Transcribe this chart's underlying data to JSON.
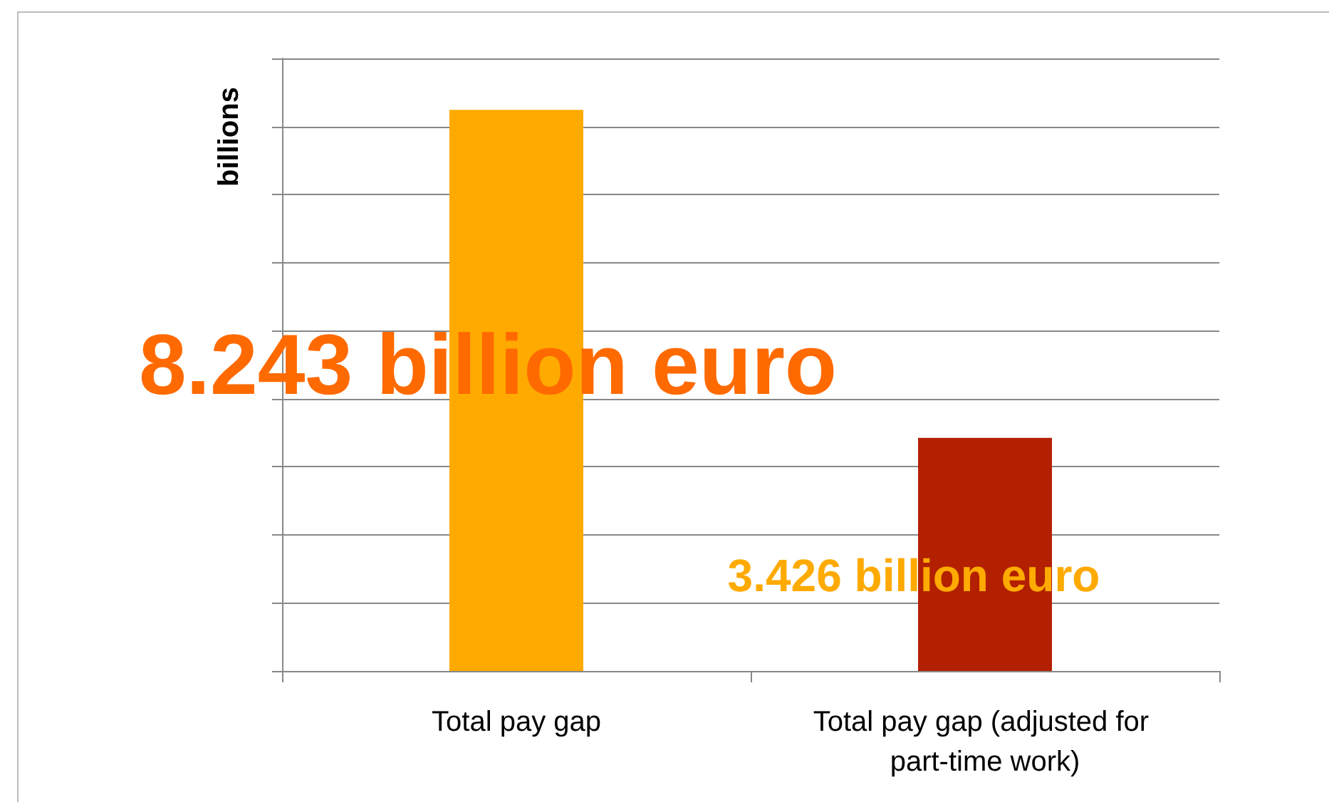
{
  "chart_data": {
    "type": "bar",
    "ylabel": "billions",
    "categories": [
      "Total pay gap",
      "Total pay gap (adjusted for part-time work)"
    ],
    "values": [
      8.243,
      3.426
    ],
    "colors": [
      "#ffaa00",
      "#b22000"
    ],
    "value_labels": [
      "8.243 billion euro",
      "3.426 billion euro"
    ],
    "ylim": [
      0,
      9
    ],
    "yticks": [
      {
        "value": 0,
        "label": null
      },
      {
        "value": 1,
        "label": null
      },
      {
        "value": 2,
        "label": null
      },
      {
        "value": 3,
        "label": null
      },
      {
        "value": 4,
        "label": null
      },
      {
        "value": 5,
        "label": null
      },
      {
        "value": 6,
        "label": null
      },
      {
        "value": 7,
        "label": null
      },
      {
        "value": 8,
        "label": null
      },
      {
        "value": 9,
        "label": null
      }
    ],
    "grid": "y",
    "tick_labels": "x"
  }
}
